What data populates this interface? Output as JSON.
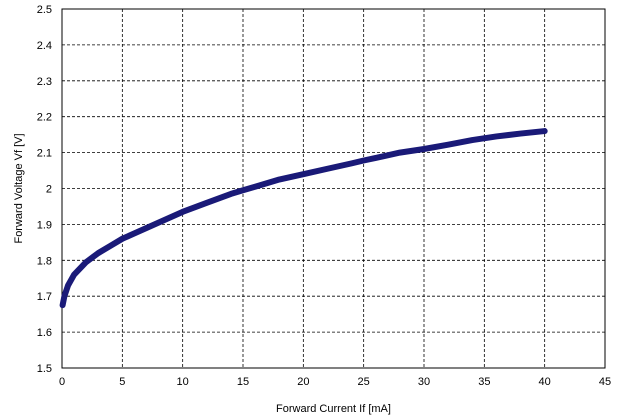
{
  "chart_data": {
    "type": "line",
    "title": "",
    "xlabel": "Forward Current If [mA]",
    "ylabel": "Forward Voltage Vf [V]",
    "xlim": [
      0,
      45
    ],
    "ylim": [
      1.5,
      2.5
    ],
    "xticks": [
      "0",
      "5",
      "10",
      "15",
      "20",
      "25",
      "30",
      "35",
      "40",
      "45"
    ],
    "yticks": [
      "1.5",
      "1.6",
      "1.7",
      "1.8",
      "1.9",
      "2",
      "2.1",
      "2.2",
      "2.3",
      "2.4",
      "2.5"
    ],
    "grid": true,
    "legend": "none",
    "series": [
      {
        "color": "#1a1a78",
        "x": [
          0.05,
          0.2,
          0.5,
          1,
          2,
          3,
          4,
          5,
          6,
          7,
          8,
          9,
          10,
          12,
          14,
          15,
          16,
          18,
          20,
          22,
          24,
          25,
          26,
          28,
          30,
          32,
          34,
          36,
          38,
          40
        ],
        "y": [
          1.675,
          1.7,
          1.73,
          1.76,
          1.795,
          1.82,
          1.84,
          1.86,
          1.875,
          1.89,
          1.905,
          1.92,
          1.935,
          1.96,
          1.985,
          1.995,
          2.005,
          2.025,
          2.04,
          2.055,
          2.07,
          2.078,
          2.085,
          2.1,
          2.11,
          2.122,
          2.135,
          2.145,
          2.153,
          2.16
        ]
      }
    ]
  }
}
